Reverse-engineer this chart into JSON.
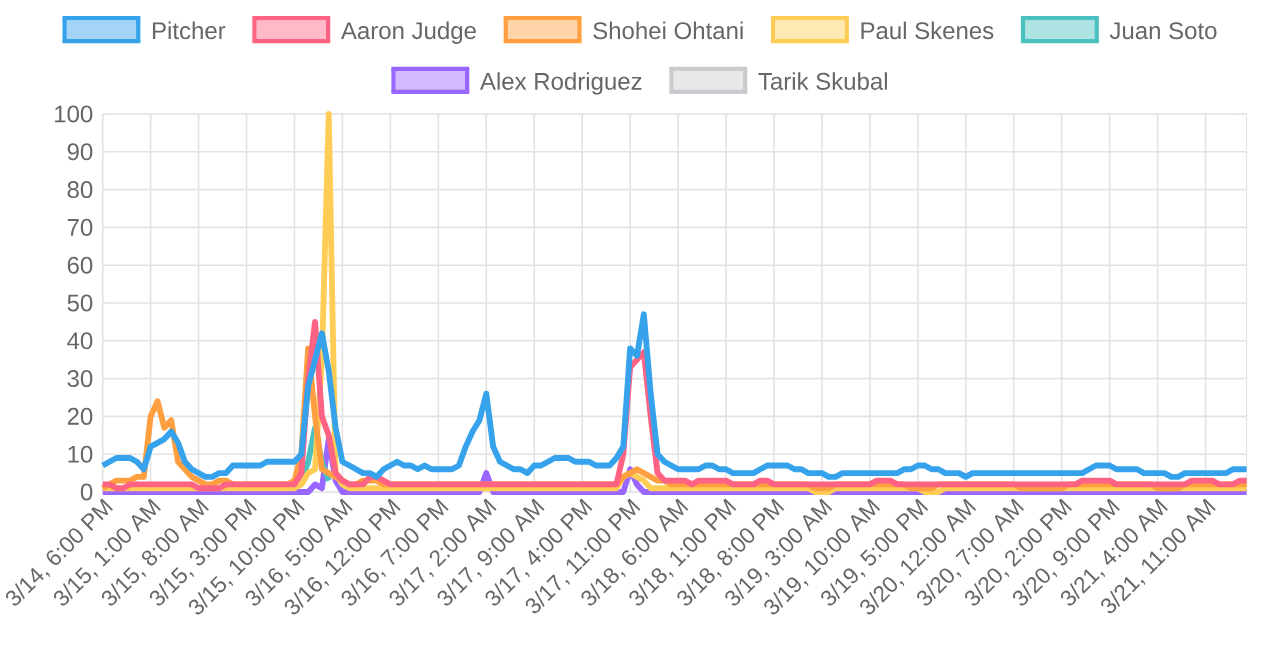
{
  "chart_data": {
    "type": "line",
    "categories": [
      "3/14, 6:00 PM",
      null,
      null,
      null,
      null,
      null,
      null,
      "3/15, 1:00 AM",
      null,
      null,
      null,
      null,
      null,
      null,
      "3/15, 8:00 AM",
      null,
      null,
      null,
      null,
      null,
      null,
      "3/15, 3:00 PM",
      null,
      null,
      null,
      null,
      null,
      null,
      "3/15, 10:00 PM",
      null,
      null,
      null,
      null,
      null,
      null,
      "3/16, 5:00 AM",
      null,
      null,
      null,
      null,
      null,
      null,
      "3/16, 12:00 PM",
      null,
      null,
      null,
      null,
      null,
      null,
      "3/16, 7:00 PM",
      null,
      null,
      null,
      null,
      null,
      null,
      "3/17, 2:00 AM",
      null,
      null,
      null,
      null,
      null,
      null,
      "3/17, 9:00 AM",
      null,
      null,
      null,
      null,
      null,
      null,
      "3/17, 4:00 PM",
      null,
      null,
      null,
      null,
      null,
      null,
      "3/17, 11:00 PM",
      null,
      null,
      null,
      null,
      null,
      null,
      "3/18, 6:00 AM",
      null,
      null,
      null,
      null,
      null,
      null,
      "3/18, 1:00 PM",
      null,
      null,
      null,
      null,
      null,
      null,
      "3/18, 8:00 PM",
      null,
      null,
      null,
      null,
      null,
      null,
      "3/19, 3:00 AM",
      null,
      null,
      null,
      null,
      null,
      null,
      "3/19, 10:00 AM",
      null,
      null,
      null,
      null,
      null,
      null,
      "3/19, 5:00 PM",
      null,
      null,
      null,
      null,
      null,
      null,
      "3/20, 12:00 AM",
      null,
      null,
      null,
      null,
      null,
      null,
      "3/20, 7:00 AM",
      null,
      null,
      null,
      null,
      null,
      null,
      "3/20, 2:00 PM",
      null,
      null,
      null,
      null,
      null,
      null,
      "3/20, 9:00 PM",
      null,
      null,
      null,
      null,
      null,
      null,
      "3/21, 4:00 AM",
      null,
      null,
      null,
      null,
      null,
      null,
      "3/21, 11:00 AM",
      null,
      null,
      null,
      null,
      null,
      null
    ],
    "series": [
      {
        "name": "Pitcher",
        "color": "#36a2eb",
        "values": [
          7,
          8,
          9,
          9,
          9,
          8,
          6,
          12,
          13,
          14,
          16,
          13,
          8,
          6,
          5,
          4,
          4,
          5,
          5,
          7,
          7,
          7,
          7,
          7,
          8,
          8,
          8,
          8,
          8,
          10,
          28,
          35,
          42,
          32,
          17,
          8,
          7,
          6,
          5,
          5,
          4,
          6,
          7,
          8,
          7,
          7,
          6,
          7,
          6,
          6,
          6,
          6,
          7,
          12,
          16,
          19,
          26,
          12,
          8,
          7,
          6,
          6,
          5,
          7,
          7,
          8,
          9,
          9,
          9,
          8,
          8,
          8,
          7,
          7,
          7,
          9,
          12,
          38,
          36,
          47,
          26,
          10,
          8,
          7,
          6,
          6,
          6,
          6,
          7,
          7,
          6,
          6,
          5,
          5,
          5,
          5,
          6,
          7,
          7,
          7,
          7,
          6,
          6,
          5,
          5,
          5,
          4,
          4,
          5,
          5,
          5,
          5,
          5,
          5,
          5,
          5,
          5,
          6,
          6,
          7,
          7,
          6,
          6,
          5,
          5,
          5,
          4,
          5,
          5,
          5,
          5,
          5,
          5,
          5,
          5,
          5,
          5,
          5,
          5,
          5,
          5,
          5,
          5,
          5,
          6,
          7,
          7,
          7,
          6,
          6,
          6,
          6,
          5,
          5,
          5,
          5,
          4,
          4,
          5,
          5,
          5,
          5,
          5,
          5,
          5,
          6,
          6,
          6
        ]
      },
      {
        "name": "Aaron Judge",
        "color": "#ff6384",
        "values": [
          2,
          2,
          1,
          1,
          2,
          2,
          2,
          2,
          2,
          2,
          2,
          2,
          2,
          2,
          1,
          1,
          1,
          1,
          2,
          2,
          2,
          2,
          2,
          2,
          2,
          2,
          2,
          2,
          2,
          5,
          30,
          45,
          20,
          15,
          5,
          3,
          2,
          2,
          2,
          4,
          4,
          3,
          2,
          2,
          2,
          2,
          2,
          2,
          2,
          2,
          2,
          2,
          2,
          2,
          2,
          2,
          2,
          2,
          2,
          2,
          2,
          2,
          2,
          2,
          2,
          2,
          2,
          2,
          2,
          2,
          2,
          2,
          2,
          2,
          2,
          2,
          10,
          33,
          35,
          37,
          20,
          5,
          3,
          3,
          3,
          3,
          2,
          3,
          3,
          3,
          3,
          3,
          2,
          2,
          2,
          2,
          3,
          3,
          2,
          2,
          2,
          2,
          2,
          2,
          2,
          2,
          2,
          2,
          2,
          2,
          2,
          2,
          2,
          3,
          3,
          3,
          2,
          2,
          2,
          2,
          2,
          2,
          2,
          2,
          2,
          2,
          2,
          2,
          2,
          2,
          2,
          2,
          2,
          2,
          2,
          2,
          2,
          2,
          2,
          2,
          2,
          2,
          2,
          3,
          3,
          3,
          3,
          3,
          2,
          2,
          2,
          2,
          2,
          2,
          2,
          2,
          2,
          2,
          2,
          3,
          3,
          3,
          3,
          2,
          2,
          2,
          3,
          3
        ]
      },
      {
        "name": "Shohei Ohtani",
        "color": "#ff9f40",
        "values": [
          1,
          2,
          3,
          3,
          3,
          4,
          4,
          20,
          24,
          17,
          19,
          8,
          6,
          4,
          3,
          2,
          2,
          3,
          3,
          2,
          2,
          2,
          2,
          2,
          2,
          2,
          2,
          2,
          3,
          10,
          38,
          20,
          6,
          5,
          4,
          3,
          2,
          2,
          3,
          3,
          3,
          2,
          2,
          2,
          2,
          2,
          2,
          2,
          2,
          2,
          2,
          2,
          2,
          2,
          2,
          2,
          2,
          2,
          2,
          2,
          2,
          2,
          2,
          2,
          2,
          2,
          2,
          2,
          2,
          2,
          2,
          2,
          2,
          2,
          2,
          2,
          4,
          5,
          6,
          5,
          4,
          3,
          3,
          2,
          2,
          2,
          2,
          2,
          2,
          2,
          2,
          2,
          2,
          2,
          2,
          2,
          2,
          2,
          2,
          2,
          2,
          2,
          2,
          2,
          1,
          1,
          1,
          2,
          2,
          2,
          2,
          2,
          2,
          2,
          2,
          2,
          2,
          2,
          1,
          1,
          1,
          1,
          2,
          2,
          2,
          2,
          2,
          2,
          2,
          2,
          2,
          2,
          2,
          2,
          1,
          1,
          1,
          1,
          1,
          1,
          1,
          2,
          2,
          2,
          2,
          2,
          2,
          2,
          2,
          2,
          2,
          2,
          2,
          2,
          1,
          1,
          1,
          1,
          2,
          2,
          2,
          2,
          2,
          2,
          2,
          2,
          2,
          2
        ]
      },
      {
        "name": "Paul Skenes",
        "color": "#ffcd56",
        "values": [
          1,
          1,
          1,
          1,
          1,
          1,
          1,
          1,
          1,
          1,
          1,
          1,
          1,
          1,
          1,
          1,
          1,
          1,
          1,
          1,
          1,
          1,
          1,
          1,
          1,
          1,
          1,
          1,
          1,
          2,
          5,
          6,
          35,
          100,
          5,
          2,
          1,
          1,
          1,
          1,
          1,
          1,
          1,
          1,
          1,
          1,
          1,
          1,
          1,
          1,
          1,
          1,
          1,
          1,
          1,
          1,
          1,
          1,
          1,
          1,
          1,
          1,
          1,
          1,
          1,
          1,
          1,
          1,
          1,
          1,
          1,
          1,
          1,
          1,
          1,
          1,
          4,
          5,
          4,
          3,
          1,
          1,
          1,
          1,
          1,
          1,
          1,
          1,
          1,
          1,
          1,
          1,
          1,
          1,
          1,
          1,
          1,
          1,
          1,
          1,
          1,
          1,
          1,
          1,
          0,
          0,
          0,
          1,
          1,
          1,
          1,
          1,
          1,
          1,
          1,
          1,
          1,
          1,
          1,
          1,
          0,
          0,
          0,
          1,
          1,
          1,
          1,
          1,
          1,
          1,
          1,
          1,
          1,
          1,
          1,
          1,
          1,
          1,
          1,
          1,
          1,
          1,
          1,
          1,
          1,
          1,
          1,
          1,
          1,
          1,
          1,
          1,
          1,
          1,
          1,
          1,
          1,
          1,
          1,
          1,
          1,
          1,
          1,
          1,
          1,
          1,
          1,
          1
        ]
      },
      {
        "name": "Juan Soto",
        "color": "#4bc0c0",
        "values": [
          null,
          null,
          null,
          null,
          null,
          null,
          null,
          null,
          null,
          null,
          null,
          null,
          null,
          null,
          null,
          null,
          null,
          null,
          null,
          null,
          null,
          null,
          null,
          null,
          null,
          null,
          null,
          null,
          null,
          3,
          8,
          17,
          8,
          3,
          null,
          null,
          null,
          null,
          null,
          null,
          null,
          null,
          null,
          null,
          null,
          null,
          null,
          null,
          null,
          null,
          null,
          null,
          null,
          null,
          null,
          null,
          null,
          null,
          null,
          null,
          null,
          null,
          null,
          null,
          null,
          null,
          null,
          null,
          null,
          null,
          null,
          null,
          null,
          null,
          null,
          null,
          null,
          null,
          null,
          null,
          null,
          null,
          null,
          null,
          null,
          null,
          null,
          null,
          null,
          null,
          null,
          null,
          null,
          null,
          null,
          null,
          null,
          null,
          null,
          null,
          null,
          null,
          null,
          null,
          null,
          null,
          null,
          null,
          null,
          null,
          null,
          null,
          null,
          null,
          null,
          null,
          null,
          null,
          null,
          null,
          null,
          null,
          null,
          null,
          null,
          null,
          null,
          null,
          null,
          null,
          null,
          null,
          null,
          null,
          null,
          null,
          null,
          null,
          null,
          null,
          null,
          null,
          null,
          null,
          null,
          null,
          null,
          null,
          null,
          null,
          null,
          null,
          null,
          null,
          null,
          null,
          null,
          null,
          null,
          null,
          null,
          null,
          null,
          null,
          null,
          null,
          null,
          null
        ]
      },
      {
        "name": "Alex Rodriguez",
        "color": "#9966ff",
        "values": [
          0,
          0,
          0,
          0,
          0,
          0,
          0,
          0,
          0,
          0,
          0,
          0,
          0,
          0,
          0,
          0,
          0,
          0,
          0,
          0,
          0,
          0,
          0,
          0,
          0,
          0,
          0,
          0,
          0,
          0,
          0,
          2,
          1,
          14,
          3,
          0,
          0,
          0,
          0,
          0,
          0,
          0,
          0,
          0,
          0,
          0,
          0,
          0,
          0,
          0,
          0,
          0,
          0,
          0,
          0,
          0,
          5,
          0,
          0,
          0,
          0,
          0,
          0,
          0,
          0,
          0,
          0,
          0,
          0,
          0,
          0,
          0,
          0,
          0,
          0,
          0,
          0,
          6,
          2,
          0,
          0,
          0,
          0,
          0,
          0,
          0,
          0,
          0,
          0,
          0,
          0,
          0,
          0,
          0,
          0,
          0,
          0,
          0,
          0,
          0,
          0,
          0,
          0,
          0,
          0,
          0,
          0,
          0,
          0,
          0,
          0,
          0,
          0,
          0,
          0,
          0,
          0,
          0,
          0,
          0,
          0,
          0,
          0,
          0,
          0,
          0,
          0,
          0,
          0,
          0,
          0,
          0,
          0,
          0,
          0,
          0,
          0,
          0,
          0,
          0,
          0,
          0,
          0,
          0,
          0,
          0,
          0,
          0,
          0,
          0,
          0,
          0,
          0,
          0,
          0,
          0,
          0,
          0,
          0,
          0,
          0,
          0,
          0,
          0,
          0,
          0,
          0,
          0
        ]
      },
      {
        "name": "Tarik Skubal",
        "color": "#c9cbcf",
        "values": [
          null,
          null,
          null,
          null,
          null,
          null,
          null,
          null,
          null,
          null,
          null,
          null,
          null,
          null,
          null,
          null,
          null,
          null,
          null,
          null,
          null,
          null,
          null,
          null,
          null,
          null,
          null,
          null,
          null,
          null,
          null,
          null,
          null,
          null,
          null,
          null,
          null,
          null,
          null,
          null,
          null,
          null,
          null,
          null,
          null,
          null,
          null,
          null,
          null,
          null,
          null,
          null,
          null,
          null,
          null,
          null,
          null,
          null,
          null,
          null,
          null,
          null,
          null,
          null,
          null,
          null,
          null,
          null,
          null,
          null,
          null,
          null,
          null,
          null,
          null,
          null,
          null,
          null,
          null,
          null,
          null,
          null,
          null,
          null,
          null,
          null,
          null,
          null,
          null,
          null,
          null,
          null,
          null,
          null,
          null,
          null,
          null,
          null,
          null,
          null,
          null,
          null,
          null,
          null,
          null,
          null,
          null,
          null,
          null,
          null,
          null,
          null,
          null,
          null,
          null,
          null,
          null,
          null,
          null,
          null,
          null,
          null,
          null,
          null,
          null,
          null,
          null,
          null,
          null,
          null,
          null,
          null,
          null,
          null,
          null,
          null,
          null,
          null,
          null,
          null,
          null,
          null,
          null,
          null,
          null,
          null,
          null,
          null,
          null,
          null,
          null,
          null,
          null,
          null,
          null,
          null,
          null,
          null,
          null,
          null,
          null,
          null,
          null,
          null,
          null,
          null,
          null,
          null
        ]
      }
    ],
    "ylim": [
      0,
      100
    ],
    "yticks": [
      0,
      10,
      20,
      30,
      40,
      50,
      60,
      70,
      80,
      90,
      100
    ],
    "grid": true,
    "legend": "top"
  }
}
